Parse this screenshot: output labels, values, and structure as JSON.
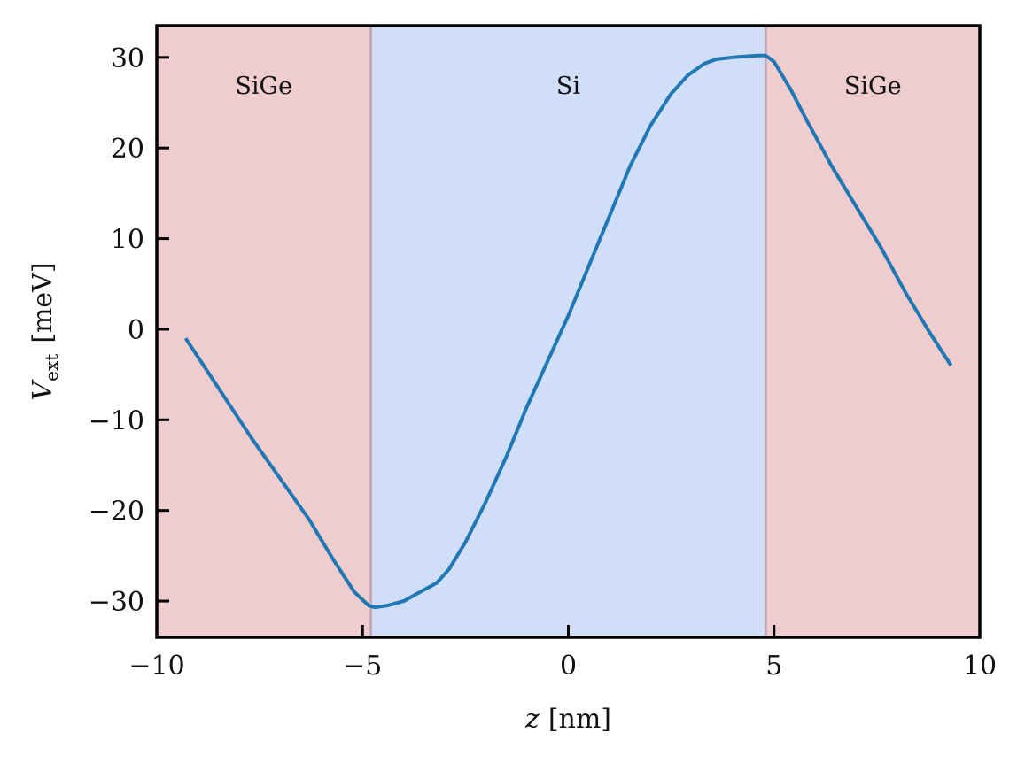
{
  "chart_data": {
    "type": "line",
    "xlabel_var": "z",
    "xlabel_unit": "[nm]",
    "ylabel_var": "V",
    "ylabel_sub": "ext",
    "ylabel_unit": "[meV]",
    "xlim": [
      -10,
      10
    ],
    "ylim": [
      -34,
      33.5
    ],
    "xticks": [
      -10,
      -5,
      0,
      5,
      10
    ],
    "xtick_labels": [
      "−10",
      "−5",
      "0",
      "5",
      "10"
    ],
    "yticks": [
      -30,
      -20,
      -10,
      0,
      10,
      20,
      30
    ],
    "ytick_labels": [
      "−30",
      "−20",
      "−10",
      "0",
      "10",
      "20",
      "30"
    ],
    "grid": false,
    "regions": [
      {
        "label": "SiGe",
        "x_start": -10,
        "x_end": -4.8,
        "color": "#efcdcf"
      },
      {
        "label": "Si",
        "x_start": -4.8,
        "x_end": 4.8,
        "color": "#d0dff7"
      },
      {
        "label": "SiGe",
        "x_start": 4.8,
        "x_end": 10,
        "color": "#efcdcf"
      }
    ],
    "region_label_y": 26,
    "boundary_color": "#c3a9bd",
    "series": [
      {
        "color": "#1f77b4",
        "x": [
          -9.3,
          -8.5,
          -7.7,
          -7.0,
          -6.3,
          -5.7,
          -5.2,
          -4.85,
          -4.7,
          -4.4,
          -4.0,
          -3.6,
          -3.2,
          -2.9,
          -2.5,
          -2.0,
          -1.5,
          -1.0,
          -0.5,
          0.0,
          0.5,
          1.0,
          1.5,
          2.0,
          2.5,
          2.9,
          3.3,
          3.6,
          4.0,
          4.3,
          4.6,
          4.8,
          5.0,
          5.4,
          5.8,
          6.4,
          7.0,
          7.6,
          8.2,
          8.8,
          9.3
        ],
        "y": [
          -1.0,
          -6.5,
          -12.0,
          -16.5,
          -21.0,
          -25.5,
          -29.0,
          -30.5,
          -30.7,
          -30.5,
          -30.0,
          -29.0,
          -28.0,
          -26.5,
          -23.5,
          -19.0,
          -14.0,
          -8.5,
          -3.5,
          1.5,
          7.0,
          12.5,
          18.0,
          22.5,
          26.0,
          28.0,
          29.3,
          29.8,
          30.0,
          30.1,
          30.2,
          30.2,
          29.5,
          26.5,
          23.0,
          18.0,
          13.5,
          9.0,
          4.0,
          -0.5,
          -4.0
        ]
      }
    ]
  }
}
